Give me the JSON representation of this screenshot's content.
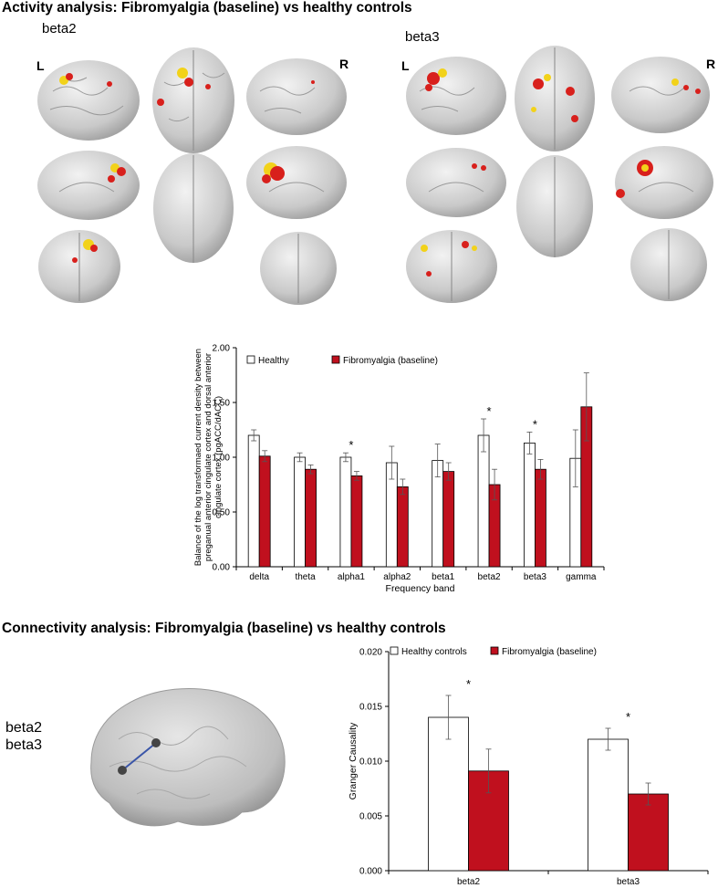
{
  "activity": {
    "title": "Activity analysis: Fibromyalgia (baseline) vs healthy controls",
    "panels": [
      {
        "band": "beta2",
        "left_label": "L",
        "right_label": "R"
      },
      {
        "band": "beta3",
        "left_label": "L",
        "right_label": "R"
      }
    ]
  },
  "connectivity": {
    "title": "Connectivity analysis: Fibromyalgia (baseline) vs healthy controls",
    "bands": [
      "beta2",
      "beta3"
    ]
  },
  "colors": {
    "healthy": "#ffffff",
    "fibromyalgia": "#c0101e",
    "brain": "#cfcfcf",
    "activation_red": "#d8201c",
    "activation_yellow": "#f2d21a",
    "connection": "#3a55a8"
  },
  "chart_data": [
    {
      "type": "bar",
      "categories": [
        "delta",
        "theta",
        "alpha1",
        "alpha2",
        "beta1",
        "beta2",
        "beta3",
        "gamma"
      ],
      "series": [
        {
          "name": "Healthy",
          "values": [
            1.2,
            1.0,
            1.0,
            0.95,
            0.97,
            1.2,
            1.13,
            0.99
          ],
          "errors": [
            0.05,
            0.04,
            0.04,
            0.15,
            0.15,
            0.15,
            0.1,
            0.26
          ]
        },
        {
          "name": "Fibromyalgia (baseline)",
          "values": [
            1.01,
            0.89,
            0.83,
            0.73,
            0.87,
            0.75,
            0.89,
            1.46
          ],
          "errors": [
            0.05,
            0.04,
            0.04,
            0.07,
            0.08,
            0.14,
            0.09,
            0.31
          ]
        }
      ],
      "significant": [
        "alpha1",
        "beta2",
        "beta3"
      ],
      "significance_marker": "*",
      "xlabel": "Frequency band",
      "ylabel": "Balance of the log transformaed current density between preganual anterior cingulate cortex and dorsal anterior cingulate cortex (pgACC/dACC)",
      "ylim": [
        0,
        2
      ],
      "yticks": [
        "0.00",
        "0.50",
        "1.00",
        "1.50",
        "2.00"
      ],
      "grid": false,
      "legend_position": "top-left"
    },
    {
      "type": "bar",
      "categories": [
        "beta2",
        "beta3"
      ],
      "series": [
        {
          "name": "Healthy controls",
          "values": [
            0.014,
            0.012
          ],
          "errors": [
            0.002,
            0.001
          ]
        },
        {
          "name": "Fibromyalgia (baseline)",
          "values": [
            0.0091,
            0.007
          ],
          "errors": [
            0.002,
            0.001
          ]
        }
      ],
      "significant": [
        "beta2",
        "beta3"
      ],
      "significance_marker": "*",
      "xlabel": "",
      "ylabel": "Granger Causality",
      "ylim": [
        0,
        0.02
      ],
      "yticks": [
        "0.000",
        "0.005",
        "0.010",
        "0.015",
        "0.020"
      ],
      "grid": false,
      "legend_position": "top"
    }
  ]
}
